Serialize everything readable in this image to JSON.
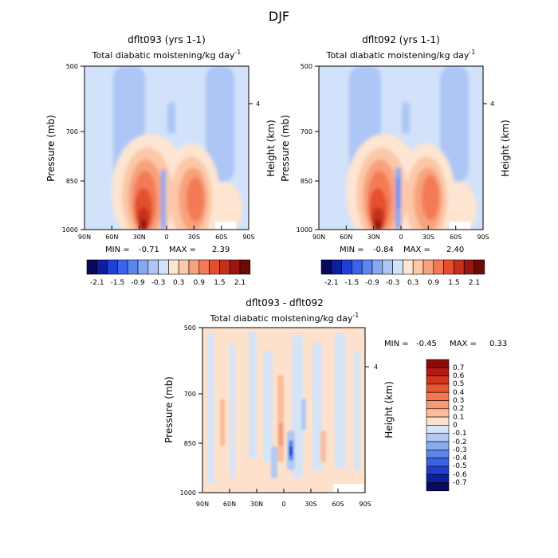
{
  "figure": {
    "title": "DJF"
  },
  "chart_data": [
    {
      "type": "heatmap",
      "title": "dflt093 (yrs 1-1)",
      "subtitle": "Total diabatic moistening/kg day",
      "subtitle_sup": "-1",
      "xlabel": "",
      "ylabel": "Pressure (mb)",
      "ylabel_right": "Height (km)",
      "x_ticks": [
        "90N",
        "60N",
        "30N",
        "0",
        "30S",
        "60S",
        "90S"
      ],
      "y_ticks": [
        "500",
        "700",
        "850",
        "1000"
      ],
      "y_ticks_right": [
        "4"
      ],
      "stats": {
        "min_label": "MIN =",
        "min": "-0.71",
        "max_label": "MAX =",
        "max": "2.39"
      },
      "colorbar": {
        "orientation": "horizontal",
        "tick_labels": [
          "-2.1",
          "-1.5",
          "-0.9",
          "-0.3",
          "0.3",
          "0.9",
          "1.5",
          "2.1"
        ],
        "colors": [
          "#08085c",
          "#0d1e9e",
          "#1f3fd6",
          "#3a63ee",
          "#5b86f2",
          "#84a8f2",
          "#adc6f5",
          "#d2e2fa",
          "#fde5d2",
          "#fcc8a8",
          "#f8a27d",
          "#f37a55",
          "#e4502f",
          "#c5301d",
          "#9b1610",
          "#6e0a06"
        ]
      }
    },
    {
      "type": "heatmap",
      "title": "dflt092 (yrs 1-1)",
      "subtitle": "Total diabatic moistening/kg day",
      "subtitle_sup": "-1",
      "xlabel": "",
      "ylabel": "Pressure (mb)",
      "ylabel_right": "Height (km)",
      "x_ticks": [
        "90N",
        "60N",
        "30N",
        "0",
        "30S",
        "60S",
        "90S"
      ],
      "y_ticks": [
        "500",
        "700",
        "850",
        "1000"
      ],
      "y_ticks_right": [
        "4"
      ],
      "stats": {
        "min_label": "MIN =",
        "min": "-0.84",
        "max_label": "MAX =",
        "max": "2.40"
      },
      "colorbar": {
        "orientation": "horizontal",
        "tick_labels": [
          "-2.1",
          "-1.5",
          "-0.9",
          "-0.3",
          "0.3",
          "0.9",
          "1.5",
          "2.1"
        ],
        "colors": [
          "#08085c",
          "#0d1e9e",
          "#1f3fd6",
          "#3a63ee",
          "#5b86f2",
          "#84a8f2",
          "#adc6f5",
          "#d2e2fa",
          "#fde5d2",
          "#fcc8a8",
          "#f8a27d",
          "#f37a55",
          "#e4502f",
          "#c5301d",
          "#9b1610",
          "#6e0a06"
        ]
      }
    },
    {
      "type": "heatmap",
      "title": "dflt093 - dflt092",
      "subtitle": "Total diabatic moistening/kg day",
      "subtitle_sup": "-1",
      "xlabel": "",
      "ylabel": "Pressure (mb)",
      "ylabel_right": "Height (km)",
      "x_ticks": [
        "90N",
        "60N",
        "30N",
        "0",
        "30S",
        "60S",
        "90S"
      ],
      "y_ticks": [
        "500",
        "700",
        "850",
        "1000"
      ],
      "y_ticks_right": [
        "4"
      ],
      "stats": {
        "min_label": "MIN =",
        "min": "-0.45",
        "max_label": "MAX =",
        "max": "0.33"
      },
      "colorbar": {
        "orientation": "vertical",
        "tick_labels": [
          "0.7",
          "0.6",
          "0.5",
          "0.4",
          "0.3",
          "0.2",
          "0.1",
          "0",
          "-0.1",
          "-0.2",
          "-0.3",
          "-0.4",
          "-0.5",
          "-0.6",
          "-0.7"
        ],
        "colors": [
          "#8c0c0a",
          "#b41a12",
          "#d4331e",
          "#e85532",
          "#f27650",
          "#f79a74",
          "#fbbd9c",
          "#fde1cc",
          "#d6e4f8",
          "#b2caf2",
          "#88aaee",
          "#5e86ea",
          "#3a62e2",
          "#1e3ec8",
          "#0e1f9a",
          "#080a5e"
        ]
      }
    }
  ]
}
